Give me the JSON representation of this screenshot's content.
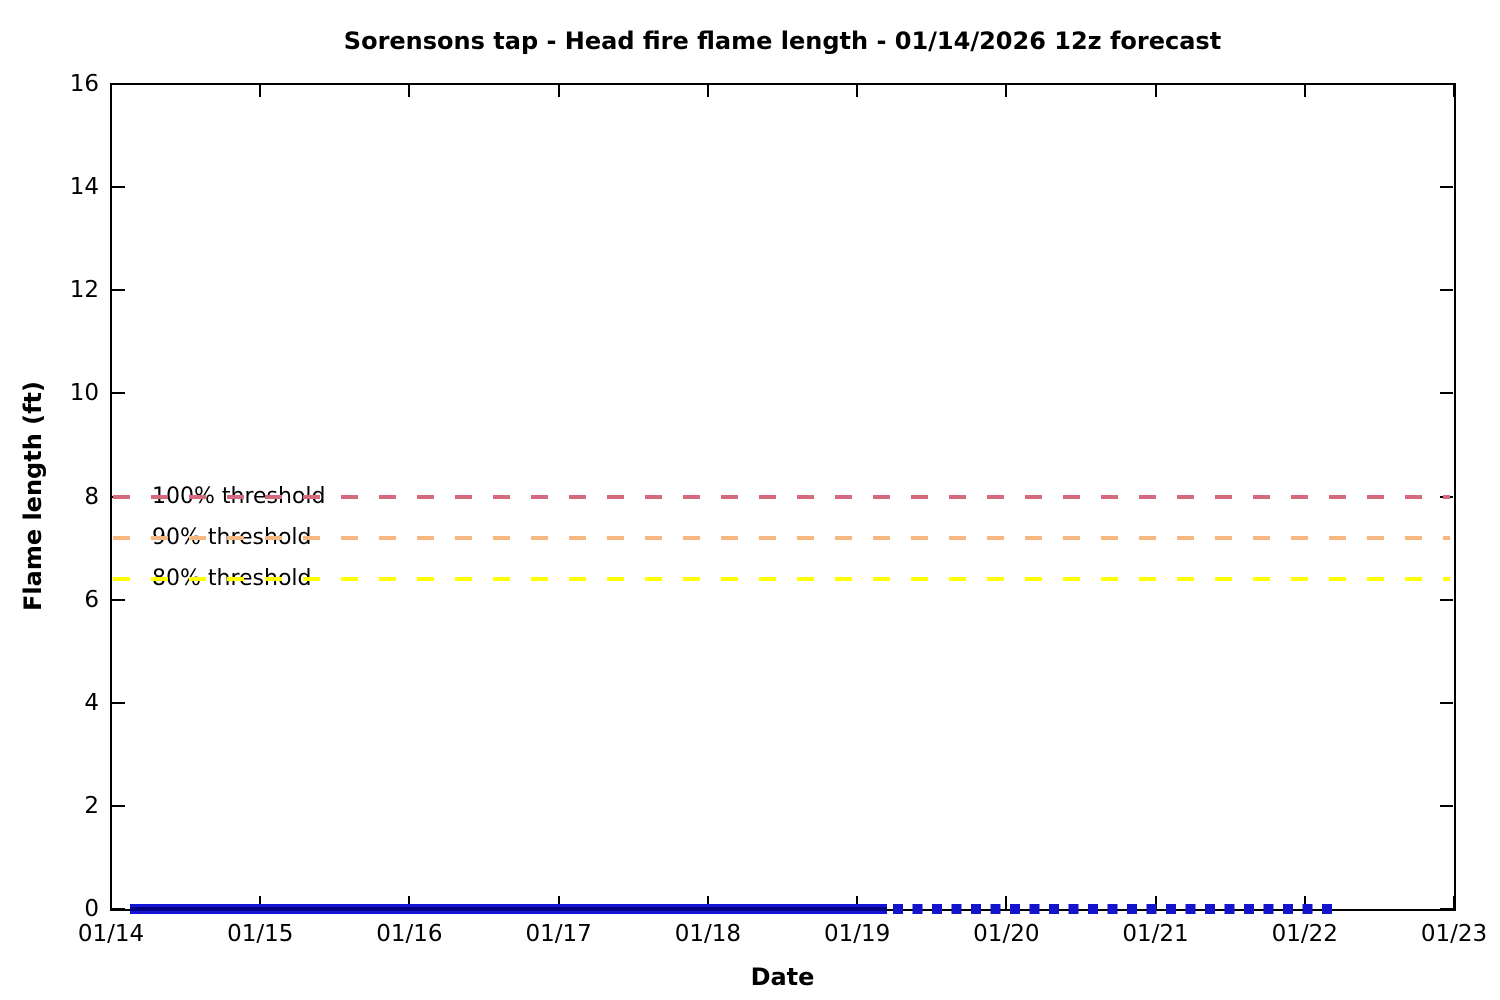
{
  "page": {
    "background": "#ffffff",
    "frame_color": "#000000"
  },
  "chart_data": {
    "type": "line",
    "title": "Sorensons tap - Head fire flame length - 01/14/2026 12z forecast",
    "xlabel": "Date",
    "ylabel": "Flame length (ft)",
    "x_tick_labels": [
      "01/14",
      "01/15",
      "01/16",
      "01/17",
      "01/18",
      "01/19",
      "01/20",
      "01/21",
      "01/22",
      "01/23"
    ],
    "y_ticks": [
      0,
      2,
      4,
      6,
      8,
      10,
      12,
      14,
      16
    ],
    "ylim": [
      0,
      16
    ],
    "grid": false,
    "legend_position": "none",
    "frame": "closed box with mirrored inward tick marks",
    "thresholds": [
      {
        "label": "100% threshold",
        "value_ft": 8.0,
        "color": "#d56a7f",
        "style": "dashed"
      },
      {
        "label": "90% threshold",
        "value_ft": 7.2,
        "color": "#f6b880",
        "style": "dashed"
      },
      {
        "label": "80% threshold",
        "value_ft": 6.4,
        "color": "#ffff00",
        "style": "dashed"
      }
    ],
    "series": [
      {
        "name": "head-fire-flame-length-forecast-solid",
        "style": "solid-thick",
        "color": "#1414d6",
        "core_color": "#000080",
        "value_ft": 0,
        "x_start_day": 0.13,
        "x_end_day": 5.2,
        "x_start_label": "01/14",
        "x_end_label": "01/19"
      },
      {
        "name": "head-fire-flame-length-forecast-extended-dashed",
        "style": "square-dashed",
        "color": "#1414cc",
        "value_ft": 0,
        "x_start_day": 5.24,
        "x_end_day": 8.19,
        "x_start_label": "01/19",
        "x_end_label": "01/22"
      }
    ]
  }
}
